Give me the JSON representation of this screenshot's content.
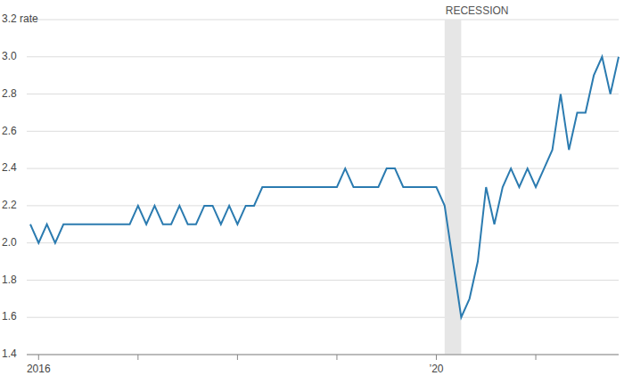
{
  "chart_data": {
    "type": "line",
    "categories": [
      null,
      "2016",
      null,
      null,
      null,
      null,
      null,
      null,
      null,
      null,
      null,
      null,
      null,
      null,
      null,
      null,
      null,
      null,
      null,
      null,
      null,
      null,
      null,
      null,
      null,
      null,
      null,
      null,
      null,
      null,
      null,
      null,
      null,
      null,
      null,
      null,
      null,
      null,
      null,
      null,
      null,
      null,
      null,
      null,
      null,
      null,
      null,
      null,
      null,
      "’20",
      null,
      null,
      null,
      null,
      null,
      null,
      null,
      null,
      null,
      null,
      null,
      null,
      null,
      null,
      null,
      null,
      null,
      null,
      null,
      null,
      null,
      null
    ],
    "values": [
      2.1,
      2.0,
      2.1,
      2.0,
      2.1,
      2.1,
      2.1,
      2.1,
      2.1,
      2.1,
      2.1,
      2.1,
      2.1,
      2.2,
      2.1,
      2.2,
      2.1,
      2.1,
      2.2,
      2.1,
      2.1,
      2.2,
      2.2,
      2.1,
      2.2,
      2.1,
      2.2,
      2.2,
      2.3,
      2.3,
      2.3,
      2.3,
      2.3,
      2.3,
      2.3,
      2.3,
      2.3,
      2.3,
      2.4,
      2.3,
      2.3,
      2.3,
      2.3,
      2.4,
      2.4,
      2.3,
      2.3,
      2.3,
      2.3,
      2.3,
      2.2,
      1.9,
      1.6,
      1.7,
      1.9,
      2.3,
      2.1,
      2.3,
      2.4,
      2.3,
      2.4,
      2.3,
      2.4,
      2.5,
      2.8,
      2.5,
      2.7,
      2.7,
      2.9,
      3.0,
      2.8,
      3.0
    ],
    "color": "#2b7bb0",
    "ylim": [
      1.4,
      3.2
    ],
    "yticks": [
      1.4,
      1.6,
      1.8,
      {
        "value": 2,
        "label": "2.0"
      },
      2.2,
      2.4,
      2.6,
      2.8,
      {
        "value": 3,
        "label": "3.0"
      },
      {
        "value": 3.2,
        "label": "3.2 rate"
      }
    ],
    "grid": true,
    "recession": {
      "label": "RECESSION",
      "start": 50,
      "end": 52
    }
  }
}
